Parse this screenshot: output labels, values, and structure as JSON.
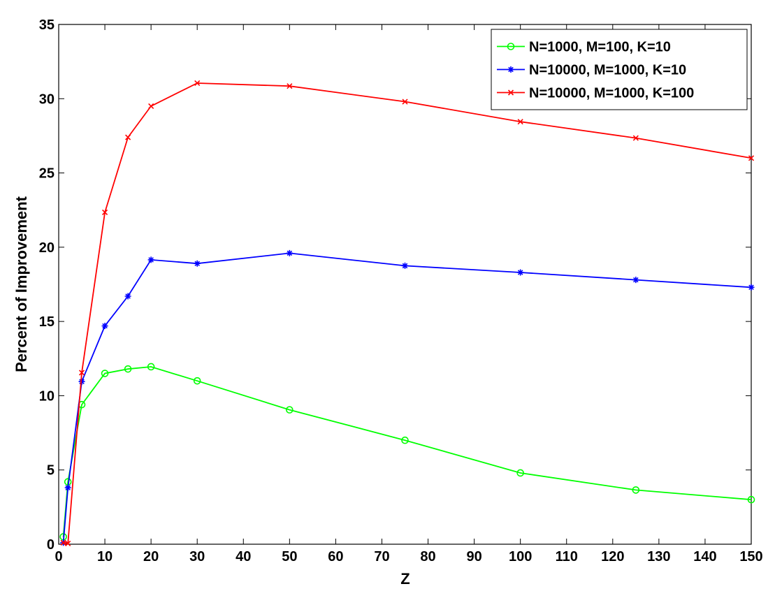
{
  "chart_data": {
    "type": "line",
    "title": "",
    "xlabel": "Z",
    "ylabel": "Percent of Improvement",
    "xlim": [
      0,
      150
    ],
    "ylim": [
      0,
      35
    ],
    "xticks": [
      0,
      10,
      20,
      30,
      40,
      50,
      60,
      70,
      80,
      90,
      100,
      110,
      120,
      130,
      140,
      150
    ],
    "yticks": [
      0,
      5,
      10,
      15,
      20,
      25,
      30,
      35
    ],
    "grid": false,
    "legend_position": "top-right",
    "series": [
      {
        "name": "N=1000, M=100, K=10",
        "color": "#00ff00",
        "marker": "circle",
        "x": [
          1,
          2,
          5,
          10,
          15,
          20,
          30,
          50,
          75,
          100,
          125,
          150
        ],
        "y": [
          0.5,
          4.2,
          9.4,
          11.5,
          11.8,
          11.95,
          11.0,
          9.05,
          7.0,
          4.8,
          3.65,
          3.0
        ]
      },
      {
        "name": "N=10000, M=1000, K=10",
        "color": "#0000ff",
        "marker": "star",
        "x": [
          1,
          2,
          5,
          10,
          15,
          20,
          30,
          50,
          75,
          100,
          125,
          150
        ],
        "y": [
          0.1,
          3.8,
          10.95,
          14.7,
          16.7,
          19.15,
          18.9,
          19.6,
          18.75,
          18.3,
          17.8,
          17.3
        ]
      },
      {
        "name": "N=10000, M=1000, K=100",
        "color": "#ff0000",
        "marker": "x",
        "x": [
          1,
          2,
          5,
          10,
          15,
          20,
          30,
          50,
          75,
          100,
          125,
          150
        ],
        "y": [
          0.1,
          0.05,
          11.55,
          22.35,
          27.4,
          29.5,
          31.05,
          30.85,
          29.8,
          28.45,
          27.35,
          26.0
        ]
      }
    ]
  }
}
